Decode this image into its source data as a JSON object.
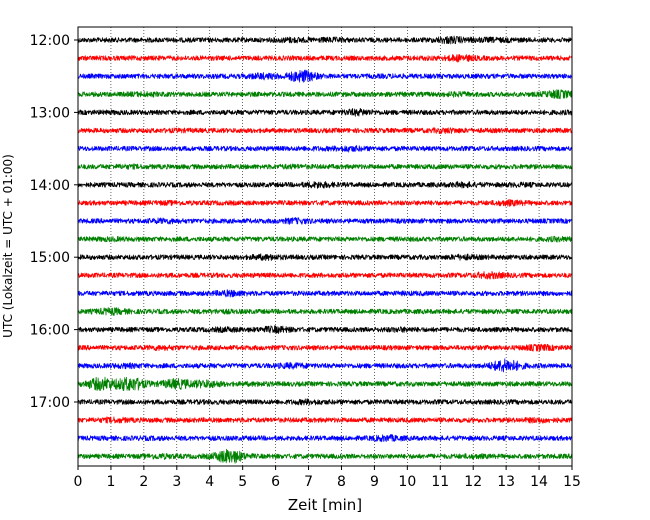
{
  "chart_data": {
    "type": "line",
    "title": "",
    "xlabel": "Zeit  [min]",
    "ylabel": "UTC (Lokalzeit = UTC + 01:00)",
    "xlim": [
      0,
      15
    ],
    "x_ticks": [
      "0",
      "1",
      "2",
      "3",
      "4",
      "5",
      "6",
      "7",
      "8",
      "9",
      "10",
      "11",
      "12",
      "13",
      "14",
      "15"
    ],
    "y_ticks": [
      {
        "label": "12:00",
        "trace_index": 0
      },
      {
        "label": "13:00",
        "trace_index": 4
      },
      {
        "label": "14:00",
        "trace_index": 8
      },
      {
        "label": "15:00",
        "trace_index": 12
      },
      {
        "label": "16:00",
        "trace_index": 16
      },
      {
        "label": "17:00",
        "trace_index": 20
      }
    ],
    "grid": {
      "x": true,
      "style": "dotted"
    },
    "trace_interval_minutes": 15,
    "trace_colors": [
      "#000000",
      "#ff0000",
      "#0000ff",
      "#008000"
    ],
    "traces": [
      {
        "start": "12:00",
        "color": "#000000",
        "events": [
          {
            "t": 6.5,
            "amp": 1.4
          },
          {
            "t": 7.7,
            "amp": 1.3
          },
          {
            "t": 11.3,
            "amp": 1.8
          },
          {
            "t": 12.3,
            "amp": 1.3
          },
          {
            "t": 13.0,
            "amp": 1.2
          }
        ]
      },
      {
        "start": "12:15",
        "color": "#ff0000",
        "events": [
          {
            "t": 11.6,
            "amp": 1.7
          },
          {
            "t": 10.5,
            "amp": 1.1
          }
        ]
      },
      {
        "start": "12:30",
        "color": "#0000ff",
        "events": [
          {
            "t": 5.6,
            "amp": 1.6
          },
          {
            "t": 6.8,
            "amp": 2.8
          },
          {
            "t": 9.6,
            "amp": 1.1
          }
        ]
      },
      {
        "start": "12:45",
        "color": "#008000",
        "events": [
          {
            "t": 2.0,
            "amp": 1.3
          },
          {
            "t": 11.5,
            "amp": 1.3
          },
          {
            "t": 14.6,
            "amp": 2.0
          }
        ]
      },
      {
        "start": "13:00",
        "color": "#000000",
        "events": [
          {
            "t": 8.5,
            "amp": 1.7
          },
          {
            "t": 1.0,
            "amp": 1.1
          },
          {
            "t": 14.8,
            "amp": 1.1
          }
        ]
      },
      {
        "start": "13:15",
        "color": "#ff0000",
        "events": [
          {
            "t": 11.2,
            "amp": 1.4
          },
          {
            "t": 3.0,
            "amp": 1.1
          }
        ]
      },
      {
        "start": "13:30",
        "color": "#0000ff",
        "events": [
          {
            "t": 8.2,
            "amp": 1.5
          },
          {
            "t": 7.2,
            "amp": 1.1
          }
        ]
      },
      {
        "start": "13:45",
        "color": "#008000",
        "events": [
          {
            "t": 1.5,
            "amp": 1.2
          },
          {
            "t": 6.5,
            "amp": 1.2
          }
        ]
      },
      {
        "start": "14:00",
        "color": "#000000",
        "events": [
          {
            "t": 7.3,
            "amp": 1.6
          },
          {
            "t": 11.7,
            "amp": 1.4
          },
          {
            "t": 13.4,
            "amp": 1.2
          }
        ]
      },
      {
        "start": "14:15",
        "color": "#ff0000",
        "events": [
          {
            "t": 2.8,
            "amp": 1.2
          },
          {
            "t": 13.1,
            "amp": 1.5
          }
        ]
      },
      {
        "start": "14:30",
        "color": "#0000ff",
        "events": [
          {
            "t": 2.6,
            "amp": 1.4
          },
          {
            "t": 6.6,
            "amp": 1.5
          }
        ]
      },
      {
        "start": "14:45",
        "color": "#008000",
        "events": [
          {
            "t": 1.0,
            "amp": 1.2
          },
          {
            "t": 14.6,
            "amp": 1.3
          }
        ]
      },
      {
        "start": "15:00",
        "color": "#000000",
        "events": [
          {
            "t": 5.7,
            "amp": 1.5
          },
          {
            "t": 11.7,
            "amp": 1.4
          }
        ]
      },
      {
        "start": "15:15",
        "color": "#ff0000",
        "events": [
          {
            "t": 12.5,
            "amp": 1.7
          },
          {
            "t": 3.5,
            "amp": 1.0
          }
        ]
      },
      {
        "start": "15:30",
        "color": "#0000ff",
        "events": [
          {
            "t": 4.6,
            "amp": 1.6
          },
          {
            "t": 10.0,
            "amp": 1.1
          }
        ]
      },
      {
        "start": "15:45",
        "color": "#008000",
        "events": [
          {
            "t": 1.0,
            "amp": 1.7
          },
          {
            "t": 4.3,
            "amp": 1.2
          }
        ]
      },
      {
        "start": "16:00",
        "color": "#000000",
        "events": [
          {
            "t": 6.0,
            "amp": 1.7
          },
          {
            "t": 4.5,
            "amp": 1.3
          },
          {
            "t": 9.8,
            "amp": 1.3
          }
        ]
      },
      {
        "start": "16:15",
        "color": "#ff0000",
        "events": [
          {
            "t": 2.5,
            "amp": 1.3
          },
          {
            "t": 14.0,
            "amp": 1.6
          }
        ]
      },
      {
        "start": "16:30",
        "color": "#0000ff",
        "events": [
          {
            "t": 13.0,
            "amp": 3.0
          },
          {
            "t": 6.5,
            "amp": 1.5
          },
          {
            "t": 1.5,
            "amp": 1.3
          }
        ]
      },
      {
        "start": "16:45",
        "color": "#008000",
        "events": [
          {
            "t": 0.7,
            "amp": 3.0
          },
          {
            "t": 1.6,
            "amp": 3.2
          },
          {
            "t": 3.0,
            "amp": 2.4
          },
          {
            "t": 3.9,
            "amp": 1.9
          },
          {
            "t": 5.5,
            "amp": 1.2
          }
        ]
      },
      {
        "start": "17:00",
        "color": "#000000",
        "events": [
          {
            "t": 7.0,
            "amp": 1.4
          },
          {
            "t": 4.0,
            "amp": 1.1
          }
        ]
      },
      {
        "start": "17:15",
        "color": "#ff0000",
        "events": [
          {
            "t": 1.1,
            "amp": 1.4
          },
          {
            "t": 14.0,
            "amp": 1.4
          }
        ]
      },
      {
        "start": "17:30",
        "color": "#0000ff",
        "events": [
          {
            "t": 9.4,
            "amp": 1.6
          },
          {
            "t": 2.2,
            "amp": 1.1
          }
        ]
      },
      {
        "start": "17:45",
        "color": "#008000",
        "events": [
          {
            "t": 4.6,
            "amp": 3.2
          },
          {
            "t": 2.5,
            "amp": 1.4
          },
          {
            "t": 12.0,
            "amp": 1.2
          }
        ]
      }
    ]
  }
}
